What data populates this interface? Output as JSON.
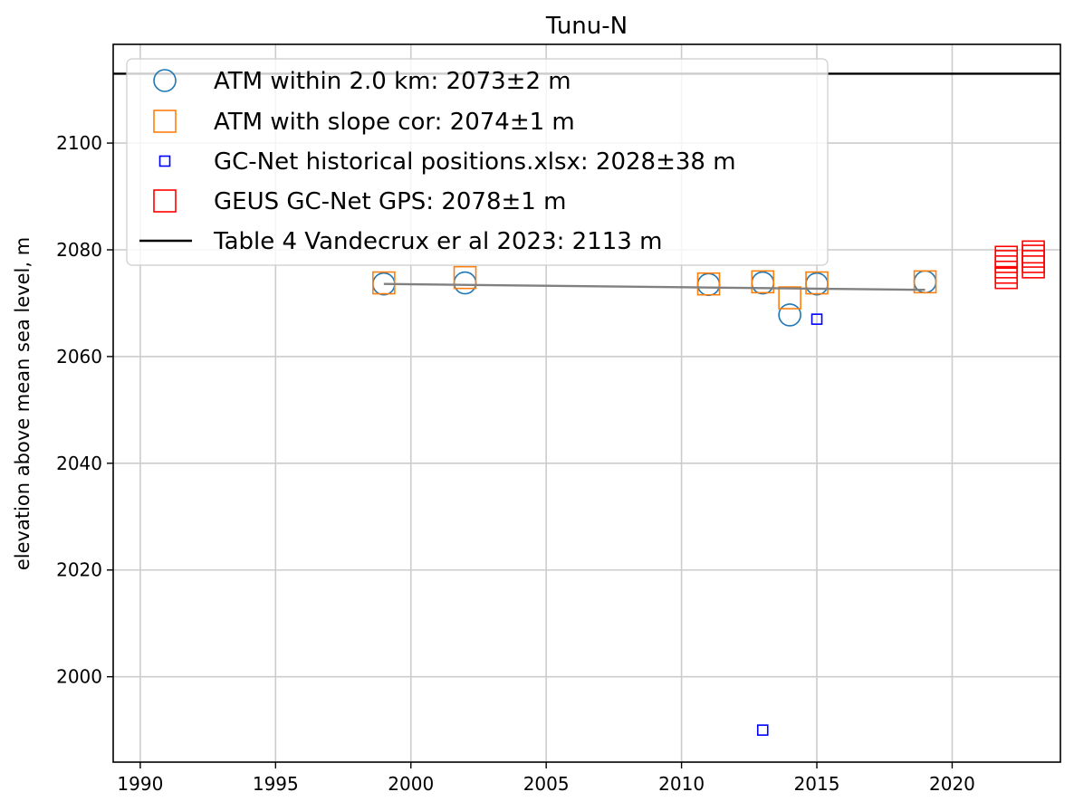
{
  "chart_data": {
    "type": "scatter",
    "title": "Tunu-N",
    "xlabel": "",
    "ylabel": "elevation above mean sea level, m",
    "xlim": [
      1989,
      2024
    ],
    "ylim": [
      1984,
      2118.5
    ],
    "xticks": [
      1990,
      1995,
      2000,
      2005,
      2010,
      2015,
      2020
    ],
    "yticks": [
      2000,
      2020,
      2040,
      2060,
      2080,
      2100
    ],
    "grid": true,
    "legend_position": "upper-left",
    "series": [
      {
        "name": "ATM within 2.0 km: 2073±2 m",
        "marker": "circle-open",
        "color": "#1f77b4",
        "points": [
          [
            1999,
            2073.6
          ],
          [
            2002,
            2073.8
          ],
          [
            2011,
            2073.5
          ],
          [
            2013,
            2073.8
          ],
          [
            2014,
            2067.8
          ],
          [
            2015,
            2073.6
          ],
          [
            2019,
            2074.0
          ]
        ]
      },
      {
        "name": "ATM with slope cor: 2074±1 m",
        "marker": "square-open",
        "color": "#ff7f0e",
        "points": [
          [
            1999,
            2073.8
          ],
          [
            2002,
            2074.8
          ],
          [
            2011,
            2073.6
          ],
          [
            2013,
            2074.0
          ],
          [
            2014,
            2071.0
          ],
          [
            2015,
            2073.8
          ],
          [
            2019,
            2074.0
          ]
        ]
      },
      {
        "name": "GC-Net historical positions.xlsx: 2028±38 m",
        "marker": "square-open-small",
        "color": "#0000ff",
        "points": [
          [
            2013,
            1990.0
          ],
          [
            2015,
            2067.0
          ]
        ]
      },
      {
        "name": "GEUS GC-Net GPS: 2078±1 m",
        "marker": "square-open",
        "color": "#ff0000",
        "points": [
          [
            2022,
            2074.8
          ],
          [
            2022,
            2075.8
          ],
          [
            2022,
            2076.8
          ],
          [
            2022,
            2077.8
          ],
          [
            2022,
            2078.6
          ],
          [
            2023,
            2076.8
          ],
          [
            2023,
            2077.8
          ],
          [
            2023,
            2078.8
          ],
          [
            2023,
            2079.6
          ]
        ]
      },
      {
        "name": "Table 4 Vandecrux er al 2023: 2113 m",
        "marker": "hline",
        "color": "#000000",
        "value": 2113
      }
    ],
    "trend_line": {
      "color": "#808080",
      "points": [
        [
          1999,
          2073.6
        ],
        [
          2019,
          2072.5
        ]
      ]
    }
  }
}
